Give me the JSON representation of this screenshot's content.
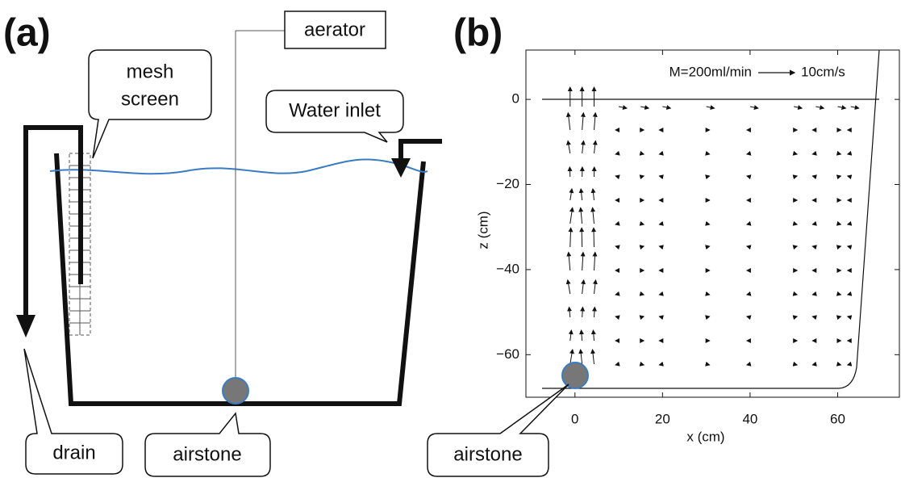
{
  "panel_a": {
    "label": "(a)",
    "aerator": "aerator",
    "mesh_screen": [
      "mesh",
      "screen"
    ],
    "water_inlet": "Water inlet",
    "drain": "drain",
    "airstone": "airstone"
  },
  "panel_b": {
    "label": "(b)",
    "airstone": "airstone",
    "chart_data": {
      "type": "quiver",
      "xlabel": "x (cm)",
      "ylabel": "z (cm)",
      "xlim": [
        -11.2,
        74.1
      ],
      "ylim": [
        -70,
        11.6
      ],
      "xticks": [
        0,
        20,
        40,
        60
      ],
      "yticks": [
        0,
        {
          "value": -20,
          "label": "−20"
        },
        {
          "value": -40,
          "label": "−40"
        },
        {
          "value": -60,
          "label": "−60"
        }
      ],
      "annotations": {
        "flow": "M=200ml/min",
        "scale": "10cm/s"
      }
    }
  }
}
